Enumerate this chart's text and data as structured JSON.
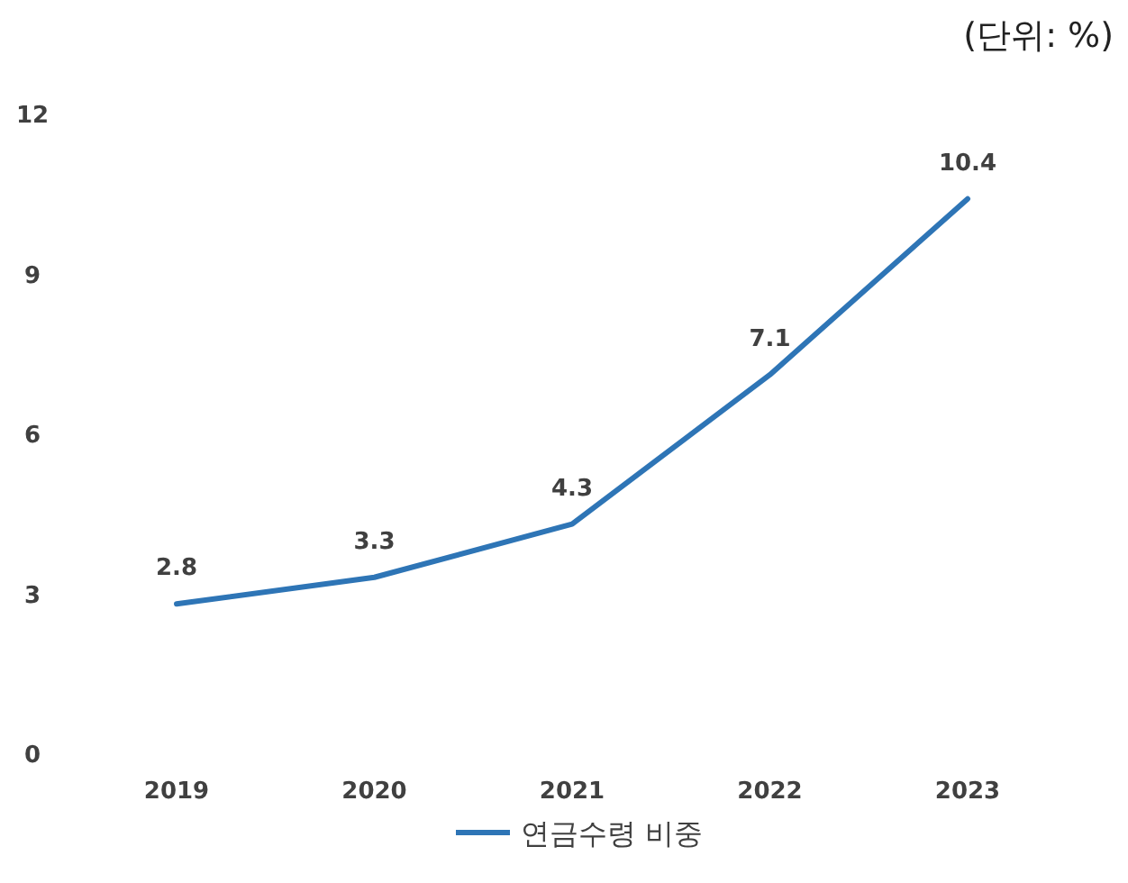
{
  "chart_data": {
    "type": "line",
    "categories": [
      "2019",
      "2020",
      "2021",
      "2022",
      "2023"
    ],
    "series": [
      {
        "name": "연금수령 비중",
        "color": "#2e75b6",
        "values": [
          2.8,
          3.3,
          4.3,
          7.1,
          10.4
        ]
      }
    ],
    "ylim": [
      0,
      12
    ],
    "yticks": [
      0,
      3,
      6,
      9,
      12
    ],
    "grid": false,
    "legend": "bottom",
    "data_labels": true,
    "marker": "none",
    "line_style": "solid",
    "annotations": [
      "(단위: %)"
    ]
  }
}
